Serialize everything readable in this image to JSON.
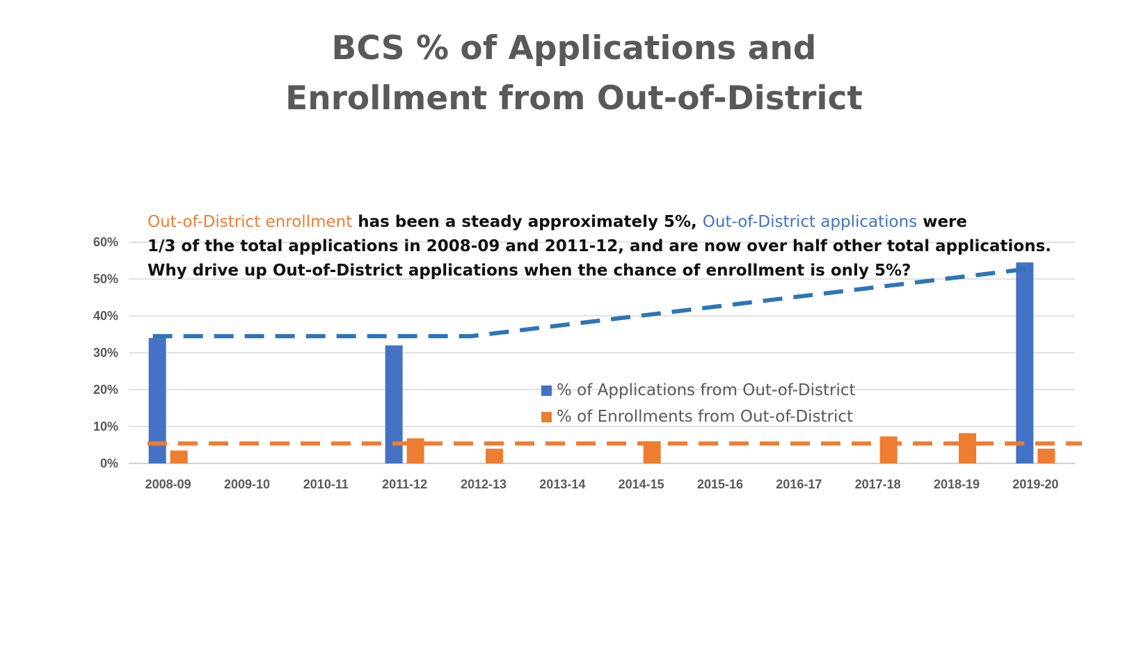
{
  "title_lines": [
    "BCS % of Applications and",
    "Enrollment from Out-of-District"
  ],
  "annotation": {
    "line1_orange": "Out-of-District enrollment",
    "line1_mid": " has been a steady approximately 5%, ",
    "line1_blue": "Out-of-District applications",
    "line1_end": " were",
    "line2": "1/3 of the total applications in 2008-09 and 2011-12, and are now over half other total applications.",
    "line3": "Why drive up Out-of-District applications when the chance of enrollment is only 5%?"
  },
  "chart_data": {
    "type": "bar",
    "categories": [
      "2008-09",
      "2009-10",
      "2010-11",
      "2011-12",
      "2012-13",
      "2013-14",
      "2014-15",
      "2015-16",
      "2016-17",
      "2017-18",
      "2018-19",
      "2019-20"
    ],
    "series": [
      {
        "name": "% of Applications from Out-of-District",
        "color": "#4472C4",
        "values": [
          34,
          null,
          null,
          32,
          null,
          null,
          null,
          null,
          null,
          null,
          null,
          54.5
        ]
      },
      {
        "name": "% of Enrollments from Out-of-District",
        "color": "#ED7D31",
        "values": [
          3.5,
          null,
          null,
          6.8,
          4,
          null,
          6,
          null,
          null,
          7.3,
          8.2,
          4
        ]
      }
    ],
    "yticks": [
      "0%",
      "10%",
      "20%",
      "30%",
      "40%",
      "50%",
      "60%"
    ],
    "ylim": [
      0,
      60
    ],
    "grid": true,
    "legend_position": "center",
    "trend_lines": [
      {
        "name": "applications trend",
        "color": "#2E75B6",
        "points": [
          [
            0,
            34.5
          ],
          [
            4,
            34.5
          ],
          [
            11,
            53
          ]
        ]
      },
      {
        "name": "enrollment trend",
        "color": "#ED7D31",
        "points": [
          [
            0,
            5.4
          ],
          [
            11,
            5.4
          ]
        ]
      }
    ]
  }
}
